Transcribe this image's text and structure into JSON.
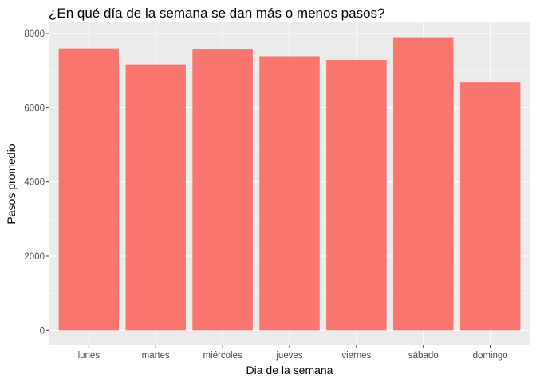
{
  "chart_data": {
    "type": "bar",
    "title": "¿En qué día de la semana se dan más o menos pasos?",
    "xlabel": "Dia de la semana",
    "ylabel": "Pasos promedio",
    "categories": [
      "lunes",
      "martes",
      "miércoles",
      "jueves",
      "viernes",
      "sábado",
      "domingo"
    ],
    "values": [
      7600,
      7150,
      7570,
      7390,
      7280,
      7880,
      6690
    ],
    "ylim": [
      -400,
      8300
    ],
    "yticks": [
      0,
      2000,
      4000,
      6000,
      8000
    ],
    "ytick_labels": [
      "0",
      "2000",
      "4000",
      "6000",
      "8000"
    ],
    "grid": true,
    "colors": {
      "bar": "#F8766D",
      "panel_background": "#EBEBEB",
      "grid_major": "#FFFFFF",
      "tick": "#333333"
    }
  }
}
